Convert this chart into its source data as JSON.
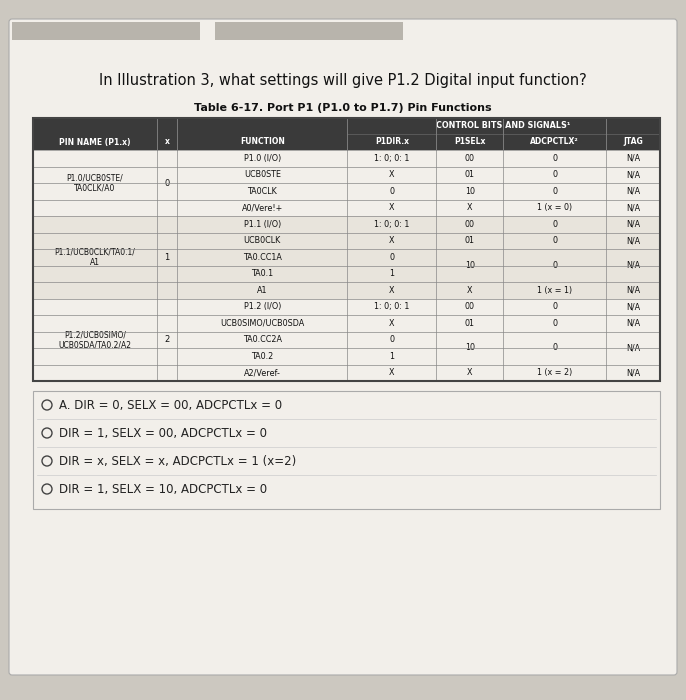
{
  "title_text": "In Illustration 3, what settings will give P1.2 Digital input function?",
  "table_title": "Table 6-17. Port P1 (P1.0 to P1.7) Pin Functions",
  "page_bg": "#ccc8c0",
  "card_bg": "#f2efea",
  "header_bg": "#3a3a3a",
  "row_bg_even": "#f2efea",
  "row_bg_odd": "#e8e4dc",
  "border_color": "#888888",
  "col_group_header": "CONTROL BITS AND SIGNALS¹",
  "sub_headers": [
    "P1DIR.x",
    "P1SELx",
    "ADCPCTLX²",
    "JTAG"
  ],
  "main_headers": [
    "PIN NAME (P1.x)",
    "x",
    "FUNCTION"
  ],
  "pin_groups": [
    {
      "pin_name": "P1.0/UCB0STE/\nTA0CLK/A0",
      "x": "0",
      "functions": [
        {
          "name": "P1.0 (I/O)",
          "p1dir": "1: 0; 0: 1",
          "p1sel": "00",
          "adcpctl": "0",
          "jtag": "N/A"
        },
        {
          "name": "UCB0STE",
          "p1dir": "X",
          "p1sel": "01",
          "adcpctl": "0",
          "jtag": "N/A"
        },
        {
          "name": "TA0CLK",
          "p1dir": "0",
          "p1sel": "10",
          "adcpctl": "0",
          "jtag": "N/A"
        },
        {
          "name": "A0/Vere!+",
          "p1dir": "X",
          "p1sel": "X",
          "adcpctl": "1 (x = 0)",
          "jtag": "N/A"
        }
      ]
    },
    {
      "pin_name": "P1.1/UCB0CLK/TA0.1/\nA1",
      "x": "1",
      "functions": [
        {
          "name": "P1.1 (I/O)",
          "p1dir": "1: 0; 0: 1",
          "p1sel": "00",
          "adcpctl": "0",
          "jtag": "N/A"
        },
        {
          "name": "UCB0CLK",
          "p1dir": "X",
          "p1sel": "01",
          "adcpctl": "0",
          "jtag": "N/A"
        },
        {
          "name": "TA0.CC1A",
          "p1dir": "0",
          "p1sel": "10",
          "adcpctl": "0",
          "jtag": "N/A"
        },
        {
          "name": "TA0.1",
          "p1dir": "1",
          "p1sel": "10",
          "adcpctl": "0",
          "jtag": "N/A"
        },
        {
          "name": "A1",
          "p1dir": "X",
          "p1sel": "X",
          "adcpctl": "1 (x = 1)",
          "jtag": "N/A"
        }
      ]
    },
    {
      "pin_name": "P1.2/UCB0SIMO/\nUCB0SDA/TA0.2/A2",
      "x": "2",
      "functions": [
        {
          "name": "P1.2 (I/O)",
          "p1dir": "1: 0; 0: 1",
          "p1sel": "00",
          "adcpctl": "0",
          "jtag": "N/A"
        },
        {
          "name": "UCB0SIMO/UCB0SDA",
          "p1dir": "X",
          "p1sel": "01",
          "adcpctl": "0",
          "jtag": "N/A"
        },
        {
          "name": "TA0.CC2A",
          "p1dir": "0",
          "p1sel": "10",
          "adcpctl": "0",
          "jtag": "N/A"
        },
        {
          "name": "TA0.2",
          "p1dir": "1",
          "p1sel": "10",
          "adcpctl": "0",
          "jtag": "N/A"
        },
        {
          "name": "A2/Veref-",
          "p1dir": "X",
          "p1sel": "X",
          "adcpctl": "1 (x = 2)",
          "jtag": "N/A"
        }
      ]
    }
  ],
  "options": [
    "A. DIR = 0, SELX = 00, ADCPCTLx = 0",
    "DIR = 1, SELX = 00, ADCPCTLx = 0",
    "DIR = x, SELX = x, ADCPCTLx = 1 (x=2)",
    "DIR = 1, SELX = 10, ADCPCTLx = 0"
  ]
}
